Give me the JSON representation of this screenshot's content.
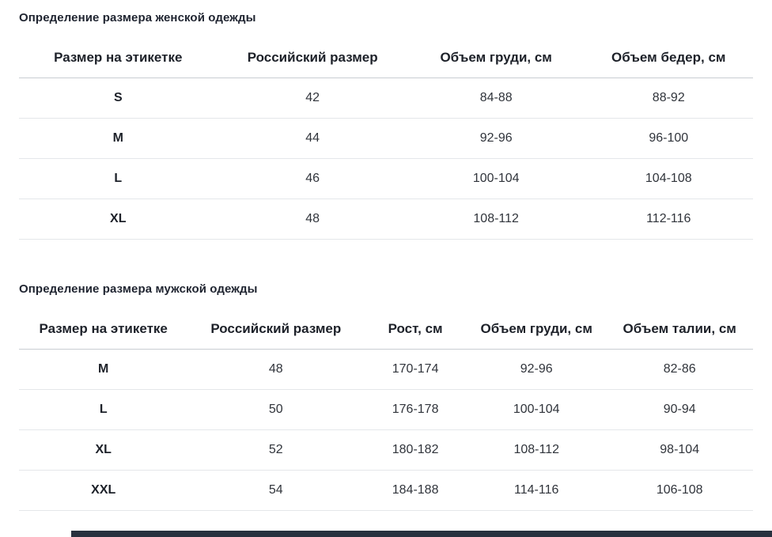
{
  "page": {
    "background": "#ffffff",
    "text_color": "#1d2129",
    "row_border_color": "#e4e7ea",
    "header_border_color": "#c9cdd2",
    "footer_edge_color": "#28313f"
  },
  "women_section": {
    "title": "Определение размера женской одежды",
    "table": {
      "headers": [
        "Размер на этикетке",
        "Российский размер",
        "Объем груди, см",
        "Объем бедер, см"
      ],
      "rows": [
        [
          "S",
          "42",
          "84-88",
          "88-92"
        ],
        [
          "M",
          "44",
          "92-96",
          "96-100"
        ],
        [
          "L",
          "46",
          "100-104",
          "104-108"
        ],
        [
          "XL",
          "48",
          "108-112",
          "112-116"
        ]
      ]
    }
  },
  "men_section": {
    "title": "Определение размера мужской одежды",
    "table": {
      "headers": [
        "Размер на этикетке",
        "Российский размер",
        "Рост, см",
        "Объем груди, см",
        "Объем талии, см"
      ],
      "rows": [
        [
          "M",
          "48",
          "170-174",
          "92-96",
          "82-86"
        ],
        [
          "L",
          "50",
          "176-178",
          "100-104",
          "90-94"
        ],
        [
          "XL",
          "52",
          "180-182",
          "108-112",
          "98-104"
        ],
        [
          "XXL",
          "54",
          "184-188",
          "114-116",
          "106-108"
        ]
      ]
    }
  }
}
